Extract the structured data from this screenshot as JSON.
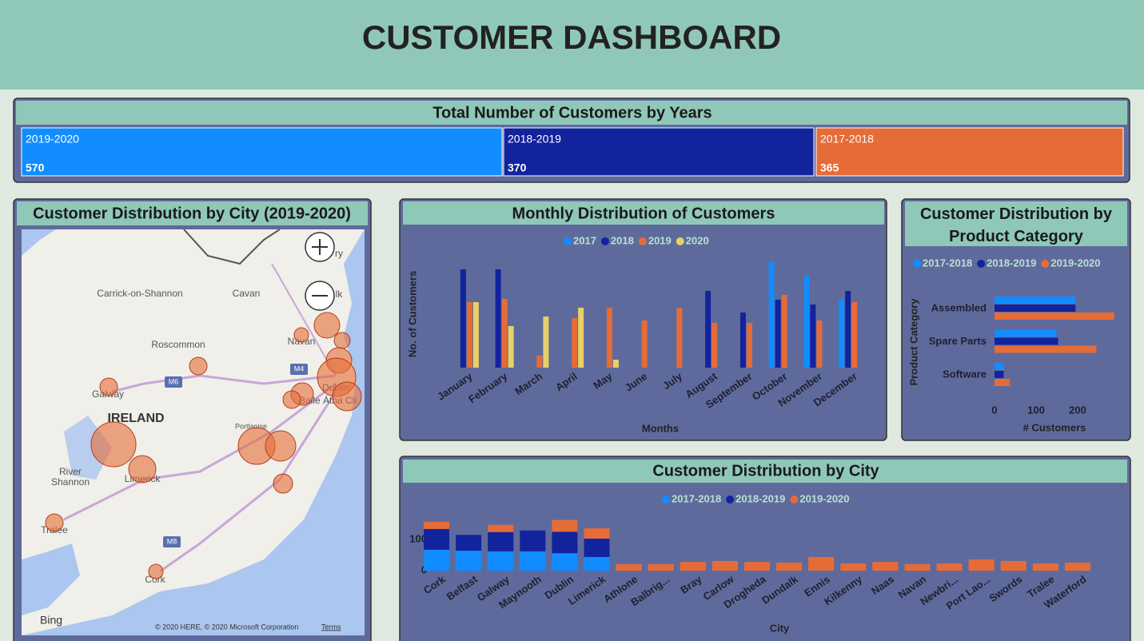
{
  "header": {
    "title": "CUSTOMER DASHBOARD"
  },
  "kpi": {
    "title": "Total Number of Customers by Years",
    "cards": [
      {
        "label": "2019-2020",
        "value": 570,
        "color": "#118dff"
      },
      {
        "label": "2018-2019",
        "value": 370,
        "color": "#12239e"
      },
      {
        "label": "2017-2018",
        "value": 365,
        "color": "#e66c37"
      }
    ]
  },
  "map": {
    "title": "Customer Distribution by City (2019-2020)",
    "labels": [
      "Carrick-on-Shannon",
      "Cavan",
      "Roscommon",
      "Navan",
      "Galway",
      "IRELAND",
      "Portlaoise",
      "River",
      "Shannon",
      "Limerick",
      "Tralee",
      "Cork",
      "Dublin",
      "Baile Átha Cli",
      "M4",
      "M6",
      "M8",
      "ry",
      "lk"
    ],
    "logo": "Bing",
    "attribution": "© 2020 HERE, © 2020 Microsoft Corporation",
    "terms": "Terms"
  },
  "chart_data": [
    {
      "type": "bar",
      "title": "Monthly Distribution of Customers",
      "x_label": "Months",
      "y_label": "No. of Customers",
      "categories": [
        "January",
        "February",
        "March",
        "April",
        "May",
        "June",
        "July",
        "August",
        "September",
        "October",
        "November",
        "December"
      ],
      "series": [
        {
          "name": "2017",
          "color": "#118dff",
          "values": [
            null,
            null,
            null,
            null,
            null,
            null,
            null,
            null,
            null,
            66,
            57.5,
            42.5
          ]
        },
        {
          "name": "2018",
          "color": "#12239e",
          "values": [
            61.5,
            61.5,
            null,
            null,
            null,
            null,
            null,
            48,
            34.5,
            42.5,
            39.5,
            48
          ]
        },
        {
          "name": "2019",
          "color": "#e66c37",
          "values": [
            41,
            43,
            7.5,
            31,
            37.5,
            29.5,
            37.5,
            28,
            28,
            45.5,
            29.5,
            41
          ]
        },
        {
          "name": "2020",
          "color": "#e8d166",
          "values": [
            41,
            26,
            32,
            37.5,
            5,
            null,
            null,
            null,
            null,
            null,
            null,
            null
          ]
        }
      ],
      "ylim": [
        0,
        70
      ],
      "legend": "top"
    },
    {
      "type": "hbar",
      "title": "Customer Distribution by Product Category",
      "x_label": "# Customers",
      "y_label": "Product Category",
      "categories": [
        "Assembled",
        "Spare Parts",
        "Software"
      ],
      "series": [
        {
          "name": "2017-2018",
          "color": "#118dff",
          "values": [
            194,
            149,
            22
          ]
        },
        {
          "name": "2018-2019",
          "color": "#12239e",
          "values": [
            195,
            153,
            22
          ]
        },
        {
          "name": "2019-2020",
          "color": "#e66c37",
          "values": [
            288,
            245,
            37
          ]
        }
      ],
      "xlim": [
        0,
        300
      ],
      "xticks": [
        0,
        100,
        200
      ],
      "legend": "top"
    },
    {
      "type": "stacked_bar",
      "title": "Customer Distribution by City",
      "x_label": "City",
      "categories": [
        "Cork",
        "Belfast",
        "Galway",
        "Maynooth",
        "Dublin",
        "Limerick",
        "Athlone",
        "Balbrig...",
        "Bray",
        "Carlow",
        "Drogheda",
        "Dundalk",
        "Ennis",
        "Kilkenny",
        "Naas",
        "Navan",
        "Newbri...",
        "Port Lao...",
        "Swords",
        "Tralee",
        "Waterford"
      ],
      "series": [
        {
          "name": "2017-2018",
          "color": "#118dff",
          "values": [
            67,
            64,
            62,
            62,
            56,
            44,
            null,
            null,
            null,
            null,
            null,
            null,
            null,
            null,
            null,
            null,
            null,
            null,
            null,
            null,
            null
          ]
        },
        {
          "name": "2018-2019",
          "color": "#12239e",
          "values": [
            67,
            51,
            62,
            67,
            69,
            59,
            null,
            null,
            null,
            null,
            null,
            null,
            null,
            null,
            null,
            null,
            null,
            null,
            null,
            null,
            null
          ]
        },
        {
          "name": "2019-2020",
          "color": "#e66c37",
          "values": [
            23,
            null,
            23,
            null,
            38,
            33,
            21,
            21,
            28,
            31,
            28,
            26,
            44,
            23,
            28,
            21,
            23,
            36,
            31,
            23,
            26
          ]
        }
      ],
      "ylim": [
        0,
        190
      ],
      "yticks": [
        0,
        100
      ],
      "legend": "top"
    }
  ]
}
